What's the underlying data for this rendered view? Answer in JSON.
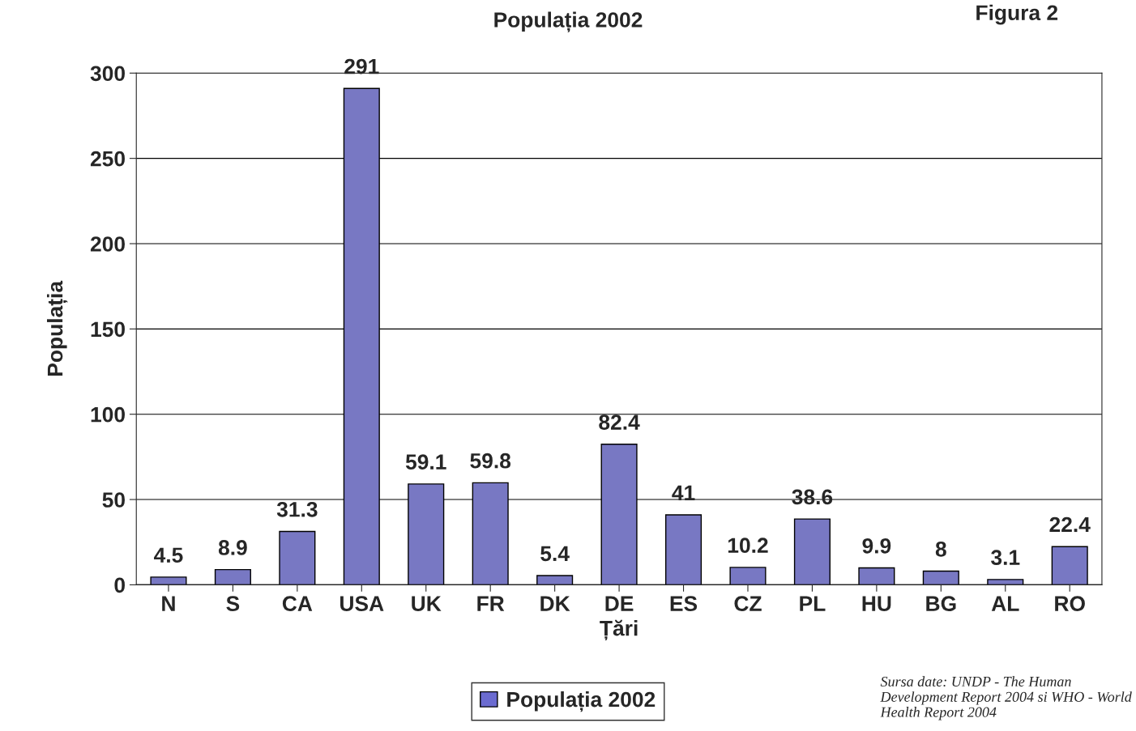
{
  "chart_data": {
    "type": "bar",
    "title": "Populația 2002",
    "xlabel": "Țări",
    "ylabel": "Populația",
    "categories": [
      "N",
      "S",
      "CA",
      "USA",
      "UK",
      "FR",
      "DK",
      "DE",
      "ES",
      "CZ",
      "PL",
      "HU",
      "BG",
      "AL",
      "RO"
    ],
    "series": [
      {
        "name": "Populația 2002",
        "color": "#6b6bd0",
        "values": [
          4.5,
          8.9,
          31.3,
          291,
          59.1,
          59.8,
          5.4,
          82.4,
          41,
          10.2,
          38.6,
          9.9,
          8,
          3.1,
          22.4
        ]
      }
    ],
    "ylim": [
      0,
      300
    ],
    "yticks": [
      0,
      50,
      100,
      150,
      200,
      250,
      300
    ],
    "grid": "y",
    "legend": "bottom",
    "data_labels": true,
    "annotations": [
      "Figura 2",
      "Sursa date: UNDP - The Human Development Report 2004 si WHO - World Health Report 2004"
    ]
  }
}
